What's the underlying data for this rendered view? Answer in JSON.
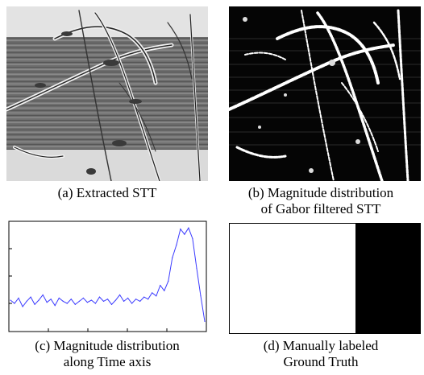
{
  "figure": {
    "panels": [
      {
        "id": "a",
        "caption_lines": [
          "(a) Extracted STT"
        ]
      },
      {
        "id": "b",
        "caption_lines": [
          "(b) Magnitude distribution",
          "of Gabor filtered STT"
        ]
      },
      {
        "id": "c",
        "caption_lines": [
          "(c) Magnitude distribution",
          "along Time axis"
        ]
      },
      {
        "id": "d",
        "caption_lines": [
          "(d) Manually labeled",
          "Ground Truth"
        ]
      }
    ]
  },
  "chart_data": {
    "type": "line",
    "title": "",
    "xlabel": "",
    "ylabel": "",
    "grid": false,
    "series": [
      {
        "color": "#3b3bff",
        "x": [
          0,
          5,
          10,
          15,
          20,
          25,
          30,
          35,
          40,
          45,
          50,
          55,
          60,
          65,
          70,
          75,
          80,
          85,
          90,
          95,
          100,
          105,
          110,
          115,
          120,
          125,
          130,
          135,
          140,
          145,
          150,
          155,
          160,
          165,
          170,
          175,
          180,
          185,
          190,
          195,
          200,
          205,
          210,
          215,
          220,
          225,
          230,
          235,
          240
        ],
        "values": [
          0.28,
          0.25,
          0.3,
          0.22,
          0.27,
          0.31,
          0.24,
          0.28,
          0.33,
          0.26,
          0.29,
          0.23,
          0.3,
          0.27,
          0.25,
          0.29,
          0.24,
          0.27,
          0.3,
          0.26,
          0.28,
          0.25,
          0.31,
          0.27,
          0.29,
          0.24,
          0.28,
          0.33,
          0.27,
          0.3,
          0.25,
          0.29,
          0.27,
          0.31,
          0.29,
          0.35,
          0.32,
          0.42,
          0.37,
          0.46,
          0.68,
          0.8,
          0.95,
          0.9,
          0.96,
          0.86,
          0.58,
          0.32,
          0.08
        ]
      }
    ]
  }
}
